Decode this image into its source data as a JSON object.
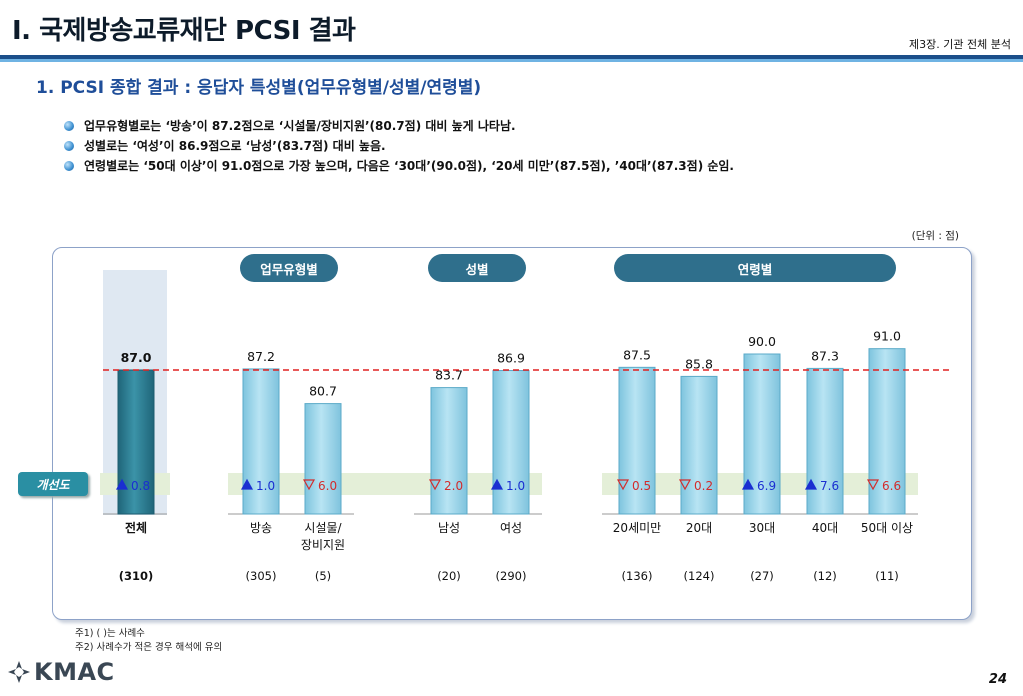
{
  "header": {
    "title": "I. 국제방송교류재단 PCSI 결과",
    "chapter": "제3장. 기관 전체 분석"
  },
  "section_title": "1. PCSI 종합 결과 : 응답자 특성별(업무유형별/성별/연령별)",
  "bullets": [
    "업무유형별로는 ‘방송’이 87.2점으로 ‘시설물/장비지원’(80.7점) 대비 높게 나타남.",
    "성별로는 ‘여성’이 86.9점으로 ‘남성’(83.7점) 대비 높음.",
    "연령별로는 ‘50대 이상’이 91.0점으로 가장 높으며, 다음은 ‘30대’(90.0점), ‘20세 미만’(87.5점), ’40대’(87.3점) 순임."
  ],
  "unit_label": "(단위 : 점)",
  "group_labels": [
    "업무유형별",
    "성별",
    "연령별"
  ],
  "improvement_label": "개선도",
  "footnotes": [
    "주1) ( )는 사례수",
    "주2) 사례수가 적은 경우 해석에 유의"
  ],
  "logo_text": "KMAC",
  "page_number": "24",
  "colors": {
    "accent_dark": "#2f6f8c",
    "bar_light": "#9fd6ea",
    "bar_total": "#2e7d92",
    "up": "#1a2fd1",
    "down": "#d22c2c",
    "reference_line": "#e02020"
  },
  "chart_data": {
    "type": "bar",
    "reference_value": 87.0,
    "categories": [
      {
        "label": "전체",
        "value": 87.0,
        "count": "(310)",
        "change": "0.8",
        "direction": "up",
        "total": true
      },
      {
        "label": "방송",
        "value": 87.2,
        "count": "(305)",
        "change": "1.0",
        "direction": "up"
      },
      {
        "label": "시설물/\n장비지원",
        "value": 80.7,
        "count": "(5)",
        "change": "6.0",
        "direction": "down"
      },
      {
        "label": "남성",
        "value": 83.7,
        "count": "(20)",
        "change": "2.0",
        "direction": "down"
      },
      {
        "label": "여성",
        "value": 86.9,
        "count": "(290)",
        "change": "1.0",
        "direction": "up"
      },
      {
        "label": "20세미만",
        "value": 87.5,
        "count": "(136)",
        "change": "0.5",
        "direction": "down"
      },
      {
        "label": "20대",
        "value": 85.8,
        "count": "(124)",
        "change": "0.2",
        "direction": "down"
      },
      {
        "label": "30대",
        "value": 90.0,
        "count": "(27)",
        "change": "6.9",
        "direction": "up"
      },
      {
        "label": "40대",
        "value": 87.3,
        "count": "(12)",
        "change": "7.6",
        "direction": "up"
      },
      {
        "label": "50대 이상",
        "value": 91.0,
        "count": "(11)",
        "change": "6.6",
        "direction": "down"
      }
    ]
  }
}
